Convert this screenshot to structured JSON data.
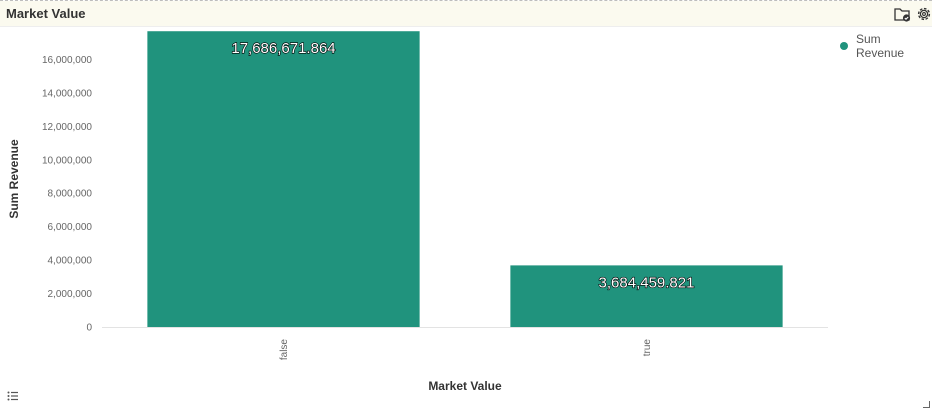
{
  "header": {
    "title": "Market Value",
    "folder_icon": "folder-check-icon",
    "settings_icon": "gear-icon"
  },
  "legend": {
    "label": "Sum Revenue",
    "color": "#20937d"
  },
  "footer": {
    "list_icon": "list-icon"
  },
  "chart_data": {
    "type": "bar",
    "categories": [
      "false",
      "true"
    ],
    "series": [
      {
        "name": "Sum Revenue",
        "values": [
          17686671.864,
          3684459.821
        ],
        "color": "#20937d"
      }
    ],
    "data_labels": [
      "17,686,671.864",
      "3,684,459.821"
    ],
    "xlabel": "Market Value",
    "ylabel": "Sum Revenue",
    "ylim": [
      0,
      17700000
    ],
    "yticks": [
      0,
      2000000,
      4000000,
      6000000,
      8000000,
      10000000,
      12000000,
      14000000,
      16000000
    ],
    "ytick_labels": [
      "0",
      "2,000,000",
      "4,000,000",
      "6,000,000",
      "8,000,000",
      "10,000,000",
      "12,000,000",
      "14,000,000",
      "16,000,000"
    ],
    "legend_position": "top-right",
    "grid": false
  }
}
